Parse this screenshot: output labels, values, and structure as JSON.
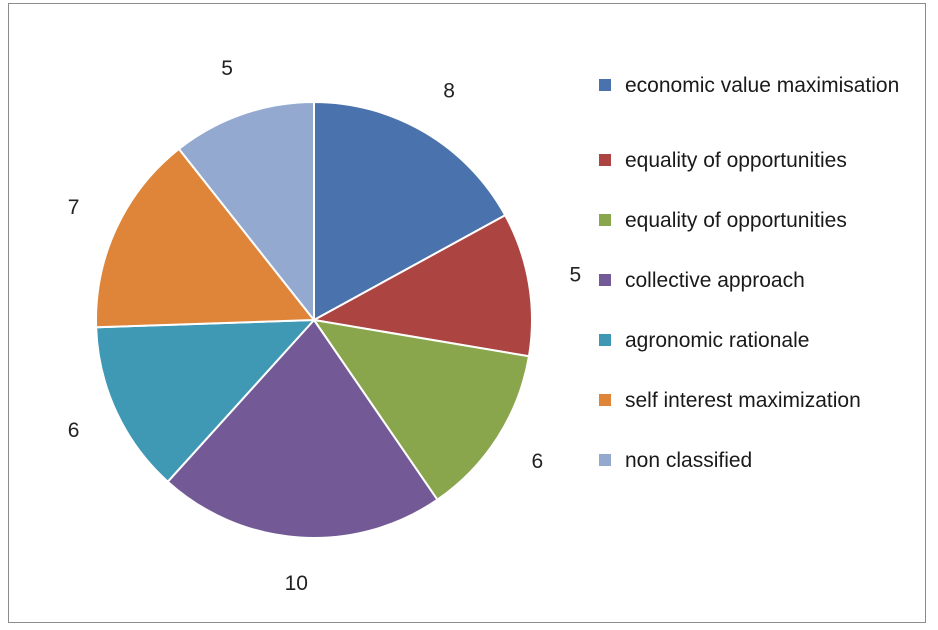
{
  "chart_data": {
    "type": "pie",
    "categories": [
      "economic value maximisation",
      "equality of opportunities",
      "equality of opportunities",
      "collective approach",
      "agronomic rationale",
      "self interest maximization",
      "non classified"
    ],
    "values": [
      8,
      5,
      6,
      10,
      6,
      7,
      5
    ],
    "data_labels": [
      "8",
      "5",
      "6",
      "10",
      "6",
      "7",
      "5"
    ],
    "colors": [
      "#4a72ac",
      "#ac4441",
      "#89a64c",
      "#735a97",
      "#3f98b4",
      "#de853a",
      "#93a9cf"
    ],
    "legend_position": "right",
    "title": "",
    "start_angle_deg": 0,
    "direction": "clockwise"
  }
}
